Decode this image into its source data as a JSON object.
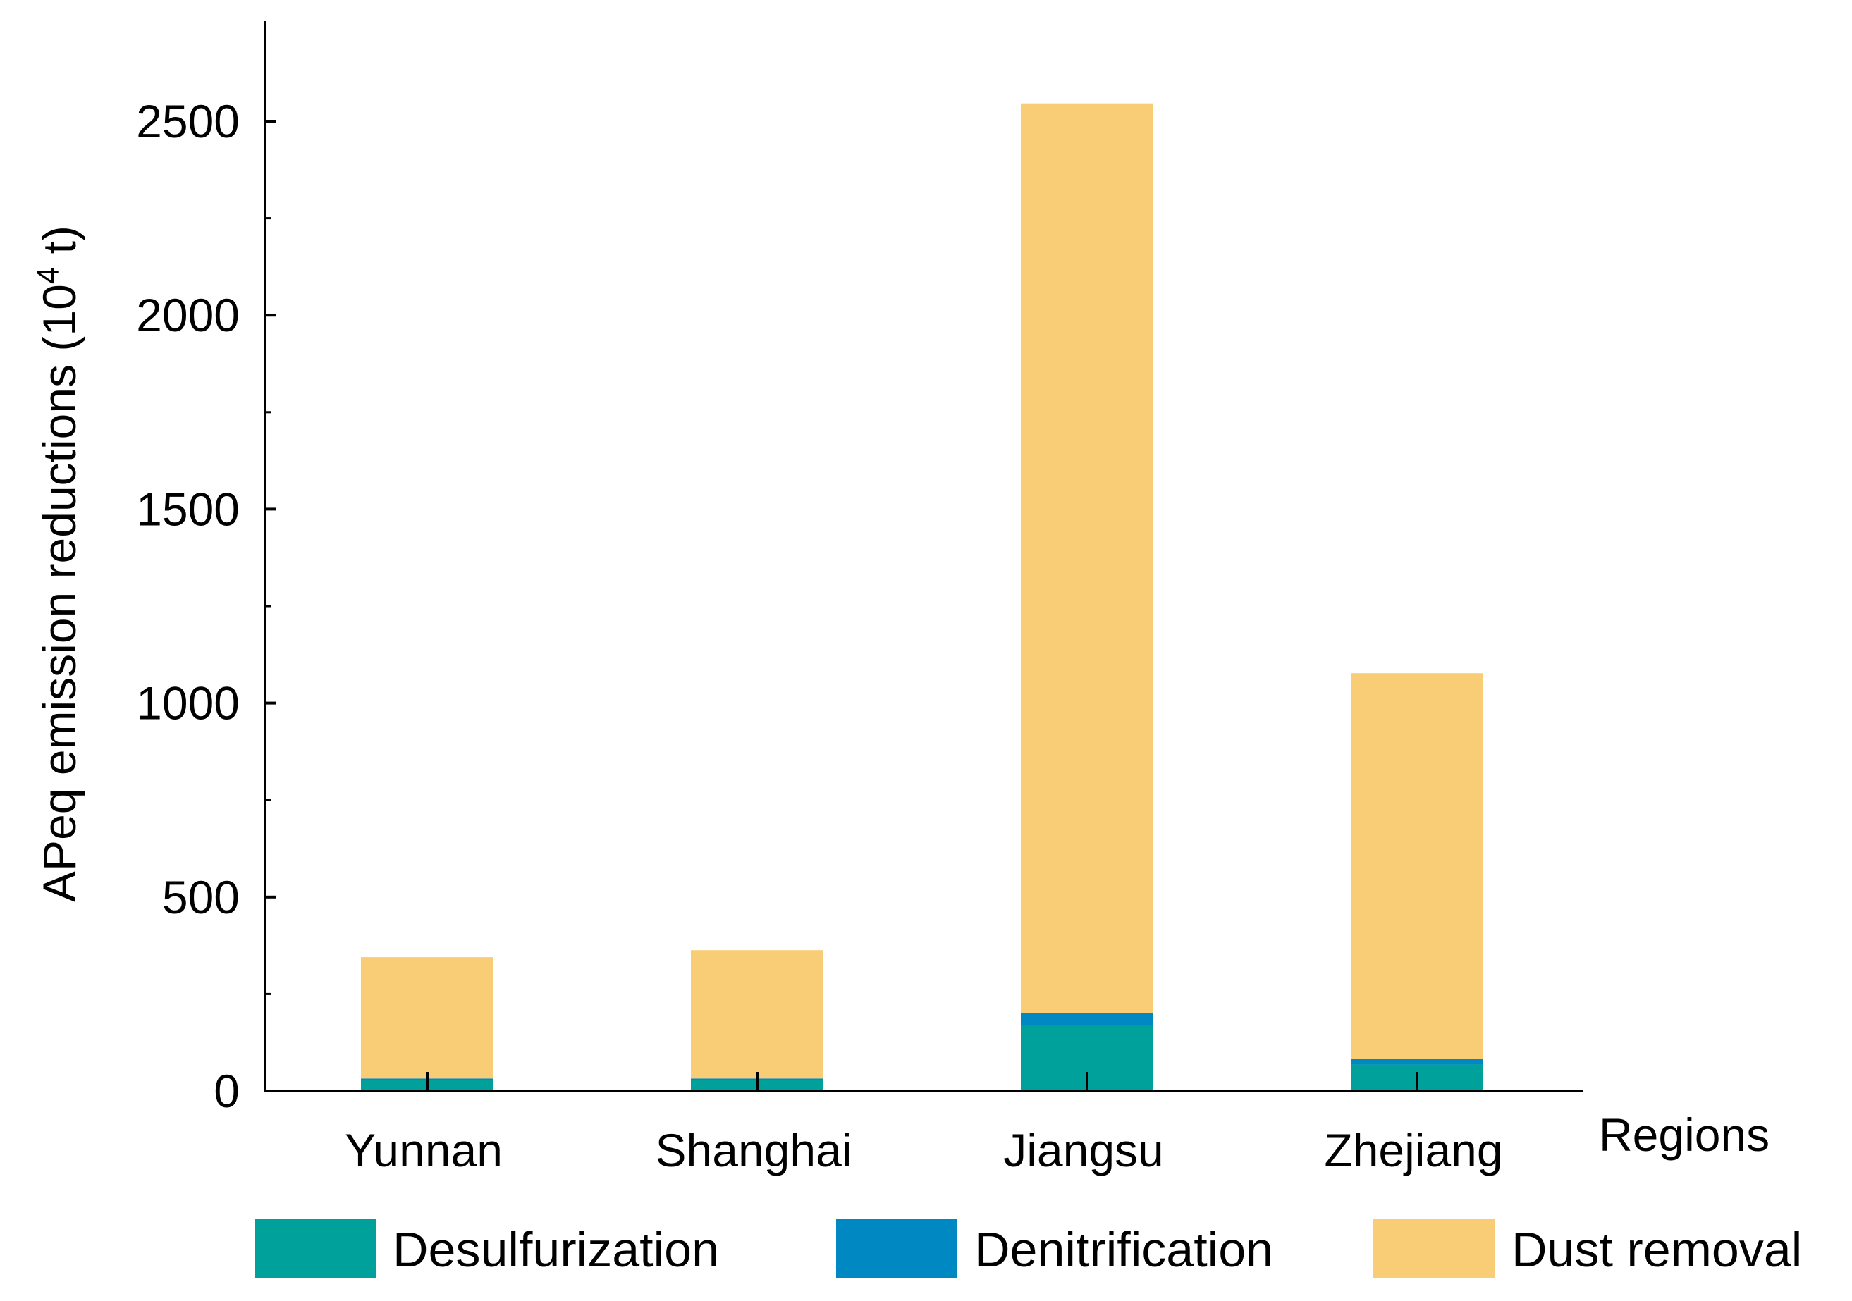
{
  "chart_data": {
    "type": "bar",
    "stacked": true,
    "categories": [
      "Yunnan",
      "Shanghai",
      "Jiangsu",
      "Zhejiang"
    ],
    "series": [
      {
        "name": "Desulfurization",
        "color": "#00A19A",
        "values": [
          28,
          28,
          168,
          68
        ]
      },
      {
        "name": "Denitrification",
        "color": "#0088C2",
        "values": [
          4,
          4,
          32,
          14
        ]
      },
      {
        "name": "Dust removal",
        "color": "#F9CD76",
        "values": [
          313,
          331,
          2346,
          995
        ]
      }
    ],
    "ylabel": "APeq emission reductions (10",
    "ylabel_sup": "4",
    "ylabel_suffix": " t)",
    "xlabel": "Regions",
    "ylim": [
      0,
      2750
    ],
    "yticks": [
      0,
      500,
      1000,
      1500,
      2000,
      2500
    ],
    "ytick_labels": [
      "0",
      "500",
      "1000",
      "1500",
      "2000",
      "2500"
    ],
    "grid": false,
    "legend_position": "bottom"
  }
}
